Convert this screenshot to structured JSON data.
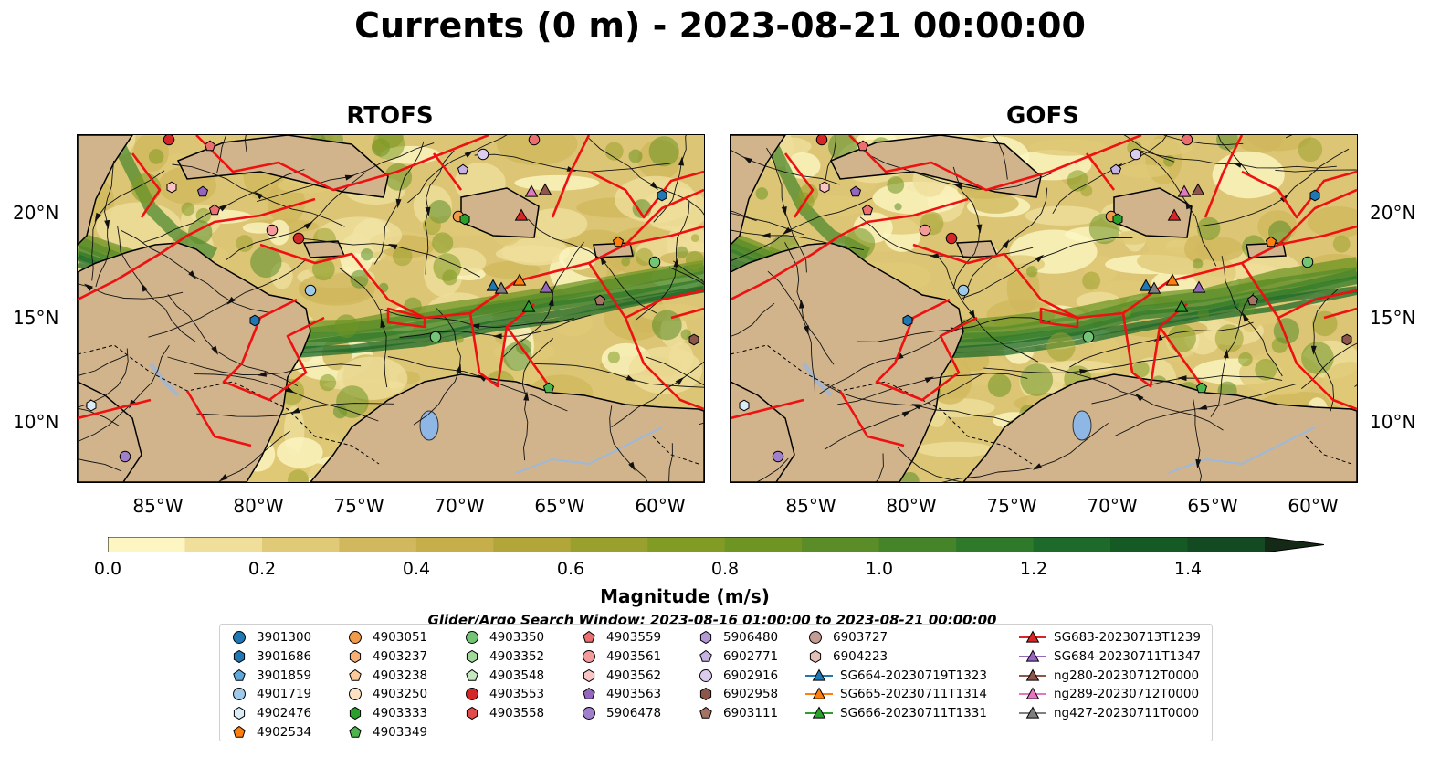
{
  "title": "Currents (0 m) - 2023-08-21 00:00:00",
  "panels": [
    {
      "title": "RTOFS"
    },
    {
      "title": "GOFS"
    }
  ],
  "axes": {
    "yticks": [
      "20°N",
      "15°N",
      "10°N"
    ],
    "xticks": [
      "85°W",
      "80°W",
      "75°W",
      "70°W",
      "65°W",
      "60°W"
    ]
  },
  "colorbar": {
    "label": "Magnitude (m/s)",
    "ticks": [
      "0.0",
      "0.2",
      "0.4",
      "0.6",
      "0.8",
      "1.0",
      "1.2",
      "1.4"
    ],
    "range": [
      0.0,
      1.5
    ],
    "extend": "max",
    "colors": [
      "#fdf6c3",
      "#efdf9b",
      "#e0c977",
      "#d1b85e",
      "#c6ae4a",
      "#b2a53a",
      "#9aa02d",
      "#829b24",
      "#6e9424",
      "#5a8c28",
      "#458429",
      "#2f7a2a",
      "#1d6a2a",
      "#155a25",
      "#134a22",
      "#14381c",
      "#142a17"
    ]
  },
  "search_window": "Glider/Argo Search Window: 2023-08-16 01:00:00 to 2023-08-21 00:00:00",
  "legend": {
    "columns": [
      [
        {
          "label": "3901300",
          "marker": "circle",
          "color": "#1f77b4"
        },
        {
          "label": "3901686",
          "marker": "hexagon",
          "color": "#1f77b4"
        },
        {
          "label": "3901859",
          "marker": "pentagon",
          "color": "#5ea8db"
        },
        {
          "label": "4901719",
          "marker": "circle",
          "color": "#9ecae9"
        },
        {
          "label": "4902476",
          "marker": "hexagon",
          "color": "#d9ecf7"
        },
        {
          "label": "4902534",
          "marker": "pentagon",
          "color": "#ff7f0e"
        }
      ],
      [
        {
          "label": "4903051",
          "marker": "circle",
          "color": "#f09a4a"
        },
        {
          "label": "4903237",
          "marker": "hexagon",
          "color": "#f7b074"
        },
        {
          "label": "4903238",
          "marker": "pentagon",
          "color": "#fbc99a"
        },
        {
          "label": "4903250",
          "marker": "circle",
          "color": "#fde2c3"
        },
        {
          "label": "4903333",
          "marker": "hexagon",
          "color": "#2ca02c"
        },
        {
          "label": "4903349",
          "marker": "pentagon",
          "color": "#4cb64c"
        }
      ],
      [
        {
          "label": "4903350",
          "marker": "circle",
          "color": "#74c476"
        },
        {
          "label": "4903352",
          "marker": "hexagon",
          "color": "#a1d99b"
        },
        {
          "label": "4903548",
          "marker": "pentagon",
          "color": "#c7e9c0"
        },
        {
          "label": "4903553",
          "marker": "circle",
          "color": "#d62728"
        },
        {
          "label": "4903558",
          "marker": "hexagon",
          "color": "#e34a4a"
        }
      ],
      [
        {
          "label": "4903559",
          "marker": "pentagon",
          "color": "#ec6f6f"
        },
        {
          "label": "4903561",
          "marker": "circle",
          "color": "#f49a9a"
        },
        {
          "label": "4903562",
          "marker": "hexagon",
          "color": "#fac4c4"
        },
        {
          "label": "4903563",
          "marker": "pentagon",
          "color": "#9467bd"
        },
        {
          "label": "5906478",
          "marker": "circle",
          "color": "#a07fcb"
        }
      ],
      [
        {
          "label": "5906480",
          "marker": "hexagon",
          "color": "#b399d6"
        },
        {
          "label": "6902771",
          "marker": "pentagon",
          "color": "#c7b3e3"
        },
        {
          "label": "6902916",
          "marker": "circle",
          "color": "#dccdee"
        },
        {
          "label": "6902958",
          "marker": "hexagon",
          "color": "#8c564b"
        },
        {
          "label": "6903111",
          "marker": "pentagon",
          "color": "#a47366"
        }
      ],
      [
        {
          "label": "6903727",
          "marker": "circle",
          "color": "#c49c94"
        },
        {
          "label": "6904223",
          "marker": "hexagon",
          "color": "#e4c0b6"
        },
        {
          "label": "SG664-20230719T1323",
          "marker": "triangle-line",
          "color": "#1f77b4"
        },
        {
          "label": "SG665-20230711T1314",
          "marker": "triangle-line",
          "color": "#ff7f0e"
        },
        {
          "label": "SG666-20230711T1331",
          "marker": "triangle-line",
          "color": "#2ca02c"
        }
      ],
      [
        {
          "label": "SG683-20230713T1239",
          "marker": "triangle-line",
          "color": "#d62728"
        },
        {
          "label": "SG684-20230711T1347",
          "marker": "triangle-line",
          "color": "#9467bd"
        },
        {
          "label": "ng280-20230712T0000",
          "marker": "triangle-line",
          "color": "#8c564b"
        },
        {
          "label": "ng289-20230712T0000",
          "marker": "triangle-line",
          "color": "#e377c2"
        },
        {
          "label": "ng427-20230711T0000",
          "marker": "triangle-line",
          "color": "#7f7f7f"
        }
      ]
    ]
  }
}
